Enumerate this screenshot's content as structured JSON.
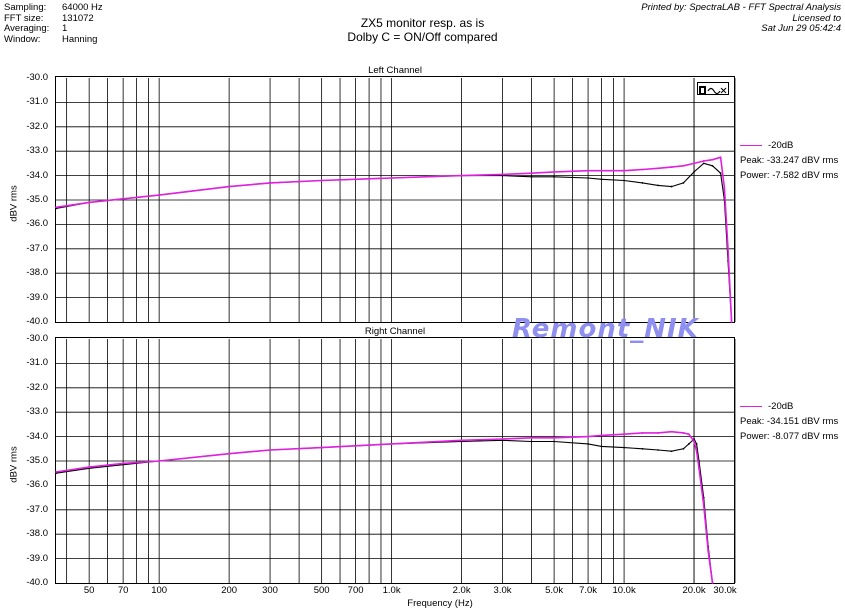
{
  "header": {
    "params": [
      {
        "label": "Sampling:",
        "value": "64000 Hz"
      },
      {
        "label": "FFT size:",
        "value": "131072"
      },
      {
        "label": "Averaging:",
        "value": "1"
      },
      {
        "label": "Window:",
        "value": "Hanning"
      }
    ],
    "printed_by": "Printed by: SpectraLAB - FFT Spectral Analysis",
    "licensed": "Licensed to",
    "date": "Sat Jun 29 05:42:4"
  },
  "title_line1": "ZX5 monitor resp. as is",
  "title_line2": "Dolby C = ON/Off compared",
  "watermark": "Remont_NIK",
  "colors": {
    "series_black": "#000000",
    "series_magenta": "#e020e0",
    "watermark": "#8f8ff0"
  },
  "chart_data": [
    {
      "type": "line",
      "title": "Left Channel",
      "ylabel": "dBV rms",
      "xlabel": "",
      "x_scale": "log",
      "xlim": [
        36,
        30000
      ],
      "ylim": [
        -40.0,
        -30.0
      ],
      "yticks": [
        "-30.0",
        "-31.0",
        "-32.0",
        "-33.0",
        "-34.0",
        "-35.0",
        "-36.0",
        "-37.0",
        "-38.0",
        "-39.0",
        "-40.0"
      ],
      "legend": {
        "name": "-20dB",
        "peak": "Peak: -33.247 dBV rms",
        "power": "Power: -7.582 dBV rms"
      },
      "series": [
        {
          "color": "#000000",
          "x": [
            36,
            50,
            70,
            100,
            200,
            300,
            500,
            1000,
            2000,
            3000,
            4000,
            5000,
            7000,
            8000,
            10000,
            12000,
            14000,
            16000,
            18000,
            20000,
            22000,
            24000,
            26000,
            27000,
            28000,
            29000
          ],
          "y": [
            -35.35,
            -35.1,
            -34.95,
            -34.8,
            -34.45,
            -34.3,
            -34.2,
            -34.1,
            -34.0,
            -34.0,
            -34.05,
            -34.05,
            -34.1,
            -34.15,
            -34.2,
            -34.3,
            -34.4,
            -34.45,
            -34.3,
            -33.85,
            -33.5,
            -33.6,
            -33.9,
            -35.0,
            -37.5,
            -40.0
          ]
        },
        {
          "color": "#e020e0",
          "x": [
            36,
            50,
            70,
            100,
            200,
            300,
            500,
            1000,
            2000,
            3000,
            4000,
            5000,
            7000,
            8000,
            10000,
            12000,
            14000,
            16000,
            18000,
            20000,
            22000,
            24000,
            26000,
            27000,
            28000,
            29000
          ],
          "y": [
            -35.3,
            -35.1,
            -34.95,
            -34.8,
            -34.45,
            -34.3,
            -34.2,
            -34.1,
            -34.0,
            -33.95,
            -33.9,
            -33.85,
            -33.8,
            -33.8,
            -33.8,
            -33.75,
            -33.7,
            -33.65,
            -33.6,
            -33.5,
            -33.4,
            -33.35,
            -33.25,
            -34.5,
            -37.0,
            -40.0
          ]
        }
      ]
    },
    {
      "type": "line",
      "title": "Right Channel",
      "ylabel": "dBV rms",
      "xlabel": "Frequency (Hz)",
      "x_scale": "log",
      "xlim": [
        36,
        30000
      ],
      "ylim": [
        -40.0,
        -30.0
      ],
      "yticks": [
        "-30.0",
        "-31.0",
        "-32.0",
        "-33.0",
        "-34.0",
        "-35.0",
        "-36.0",
        "-37.0",
        "-38.0",
        "-39.0",
        "-40.0"
      ],
      "xticks": [
        {
          "v": 50,
          "t": "50"
        },
        {
          "v": 70,
          "t": "70"
        },
        {
          "v": 100,
          "t": "100"
        },
        {
          "v": 200,
          "t": "200"
        },
        {
          "v": 300,
          "t": "300"
        },
        {
          "v": 500,
          "t": "500"
        },
        {
          "v": 700,
          "t": "700"
        },
        {
          "v": 1000,
          "t": "1.0k"
        },
        {
          "v": 2000,
          "t": "2.0k"
        },
        {
          "v": 3000,
          "t": "3.0k"
        },
        {
          "v": 5000,
          "t": "5.0k"
        },
        {
          "v": 7000,
          "t": "7.0k"
        },
        {
          "v": 10000,
          "t": "10.0k"
        },
        {
          "v": 20000,
          "t": "20.0k"
        },
        {
          "v": 30000,
          "t": "30.0k"
        }
      ],
      "legend": {
        "name": "-20dB",
        "peak": "Peak: -34.151 dBV rms",
        "power": "Power: -8.077 dBV rms"
      },
      "series": [
        {
          "color": "#000000",
          "x": [
            36,
            50,
            70,
            100,
            200,
            300,
            500,
            1000,
            2000,
            3000,
            4000,
            5000,
            7000,
            8000,
            10000,
            12000,
            14000,
            16000,
            18000,
            19000,
            20000,
            20500,
            21000,
            22000,
            23000,
            24000
          ],
          "y": [
            -35.5,
            -35.3,
            -35.15,
            -35.0,
            -34.7,
            -34.55,
            -34.45,
            -34.3,
            -34.2,
            -34.15,
            -34.2,
            -34.2,
            -34.3,
            -34.4,
            -34.45,
            -34.5,
            -34.55,
            -34.6,
            -34.5,
            -34.3,
            -34.1,
            -34.3,
            -35.0,
            -36.5,
            -38.5,
            -40.0
          ]
        },
        {
          "color": "#e020e0",
          "x": [
            36,
            50,
            70,
            100,
            200,
            300,
            500,
            1000,
            2000,
            3000,
            4000,
            5000,
            7000,
            8000,
            10000,
            12000,
            14000,
            16000,
            18000,
            19000,
            20000,
            20500,
            21000,
            22000,
            23000,
            24000
          ],
          "y": [
            -35.45,
            -35.25,
            -35.1,
            -35.0,
            -34.7,
            -34.55,
            -34.45,
            -34.3,
            -34.15,
            -34.1,
            -34.05,
            -34.05,
            -34.0,
            -33.95,
            -33.9,
            -33.85,
            -33.85,
            -33.8,
            -33.85,
            -33.9,
            -34.2,
            -34.6,
            -35.3,
            -36.8,
            -38.7,
            -40.0
          ]
        }
      ]
    }
  ]
}
